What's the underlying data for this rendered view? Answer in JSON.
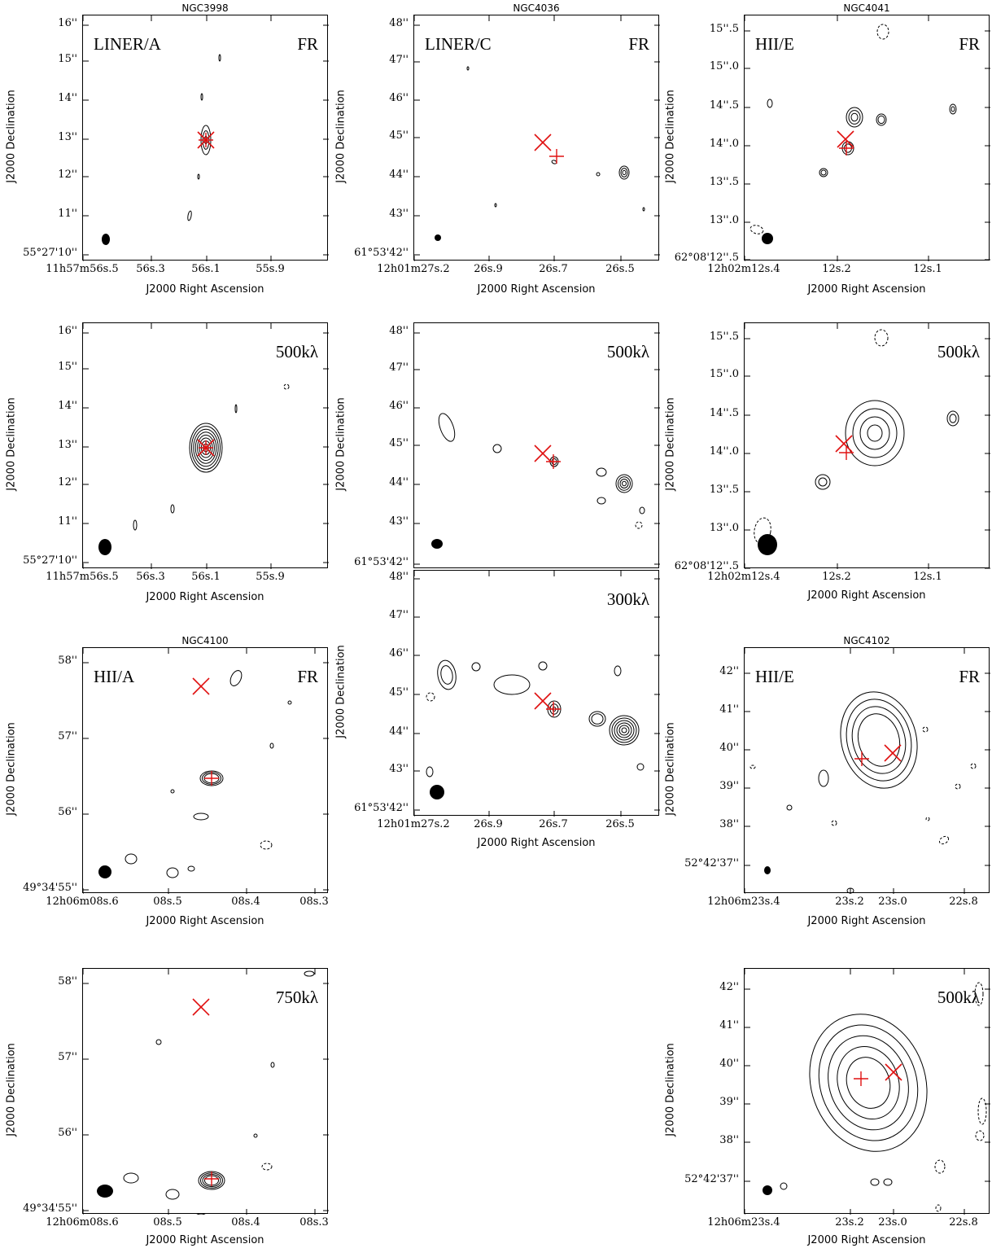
{
  "figure": {
    "xlabel": "J2000 Right Ascension",
    "ylabel": "J2000 Declination",
    "panels": [
      {
        "id": "ngc3998-fr",
        "title": "NGC3998",
        "class": "LINER/A",
        "tag": "FR",
        "yticks": [
          "16''",
          "15''",
          "14''",
          "13''",
          "12''",
          "11''",
          "55°27'10''"
        ],
        "xticks": [
          "11h57m56s.5",
          "56s.3",
          "56s.1",
          "55s.9"
        ]
      },
      {
        "id": "ngc4036-fr",
        "title": "NGC4036",
        "class": "LINER/C",
        "tag": "FR",
        "yticks": [
          "48''",
          "47''",
          "46''",
          "45''",
          "44''",
          "43''",
          "61°53'42''"
        ],
        "xticks": [
          "12h01m27s.2",
          "26s.9",
          "26s.7",
          "26s.5"
        ]
      },
      {
        "id": "ngc4041-fr",
        "title": "NGC4041",
        "class": "HII/E",
        "tag": "FR",
        "yticks": [
          "15''.5",
          "15''.0",
          "14''.5",
          "14''.0",
          "13''.5",
          "13''.0",
          "62°08'12''.5"
        ],
        "xticks": [
          "12h02m12s.4",
          "12s.2",
          "12s.1"
        ]
      },
      {
        "id": "ngc3998-500",
        "title": "",
        "class": "",
        "tag": "500kλ",
        "yticks": [
          "16''",
          "15''",
          "14''",
          "13''",
          "12''",
          "11''",
          "55°27'10''"
        ],
        "xticks": [
          "11h57m56s.5",
          "56s.3",
          "56s.1",
          "55s.9"
        ]
      },
      {
        "id": "ngc4036-500",
        "title": "",
        "class": "",
        "tag": "500kλ",
        "yticks": [
          "48''",
          "47''",
          "46''",
          "45''",
          "44''",
          "43''",
          "61°53'42''"
        ],
        "xticks": []
      },
      {
        "id": "ngc4041-500",
        "title": "",
        "class": "",
        "tag": "500kλ",
        "yticks": [
          "15''.5",
          "15''.0",
          "14''.5",
          "14''.0",
          "13''.5",
          "13''.0",
          "62°08'12''.5"
        ],
        "xticks": [
          "12h02m12s.4",
          "12s.2",
          "12s.1"
        ]
      },
      {
        "id": "ngc4036-300",
        "title": "",
        "class": "",
        "tag": "300kλ",
        "yticks": [
          "48''",
          "47''",
          "46''",
          "45''",
          "44''",
          "43''",
          "61°53'42''"
        ],
        "xticks": [
          "12h01m27s.2",
          "26s.9",
          "26s.7",
          "26s.5"
        ]
      },
      {
        "id": "ngc4100-fr",
        "title": "NGC4100",
        "class": "HII/A",
        "tag": "FR",
        "yticks": [
          "58''",
          "57''",
          "56''",
          "49°34'55''"
        ],
        "xticks": [
          "12h06m08s.6",
          "08s.5",
          "08s.4",
          "08s.3"
        ]
      },
      {
        "id": "ngc4102-fr",
        "title": "NGC4102",
        "class": "HII/E",
        "tag": "FR",
        "yticks": [
          "42''",
          "41''",
          "40''",
          "39''",
          "38''",
          "52°42'37''"
        ],
        "xticks": [
          "12h06m23s.4",
          "23s.2",
          "23s.0",
          "22s.8"
        ]
      },
      {
        "id": "ngc4100-750",
        "title": "",
        "class": "",
        "tag": "750kλ",
        "yticks": [
          "58''",
          "57''",
          "56''",
          "49°34'55''"
        ],
        "xticks": [
          "12h06m08s.6",
          "08s.5",
          "08s.4",
          "08s.3"
        ]
      },
      {
        "id": "ngc4102-500",
        "title": "",
        "class": "",
        "tag": "500kλ",
        "yticks": [
          "42''",
          "41''",
          "40''",
          "39''",
          "38''",
          "52°42'37''"
        ],
        "xticks": [
          "12h06m23s.4",
          "23s.2",
          "23s.0",
          "22s.8"
        ]
      }
    ]
  }
}
